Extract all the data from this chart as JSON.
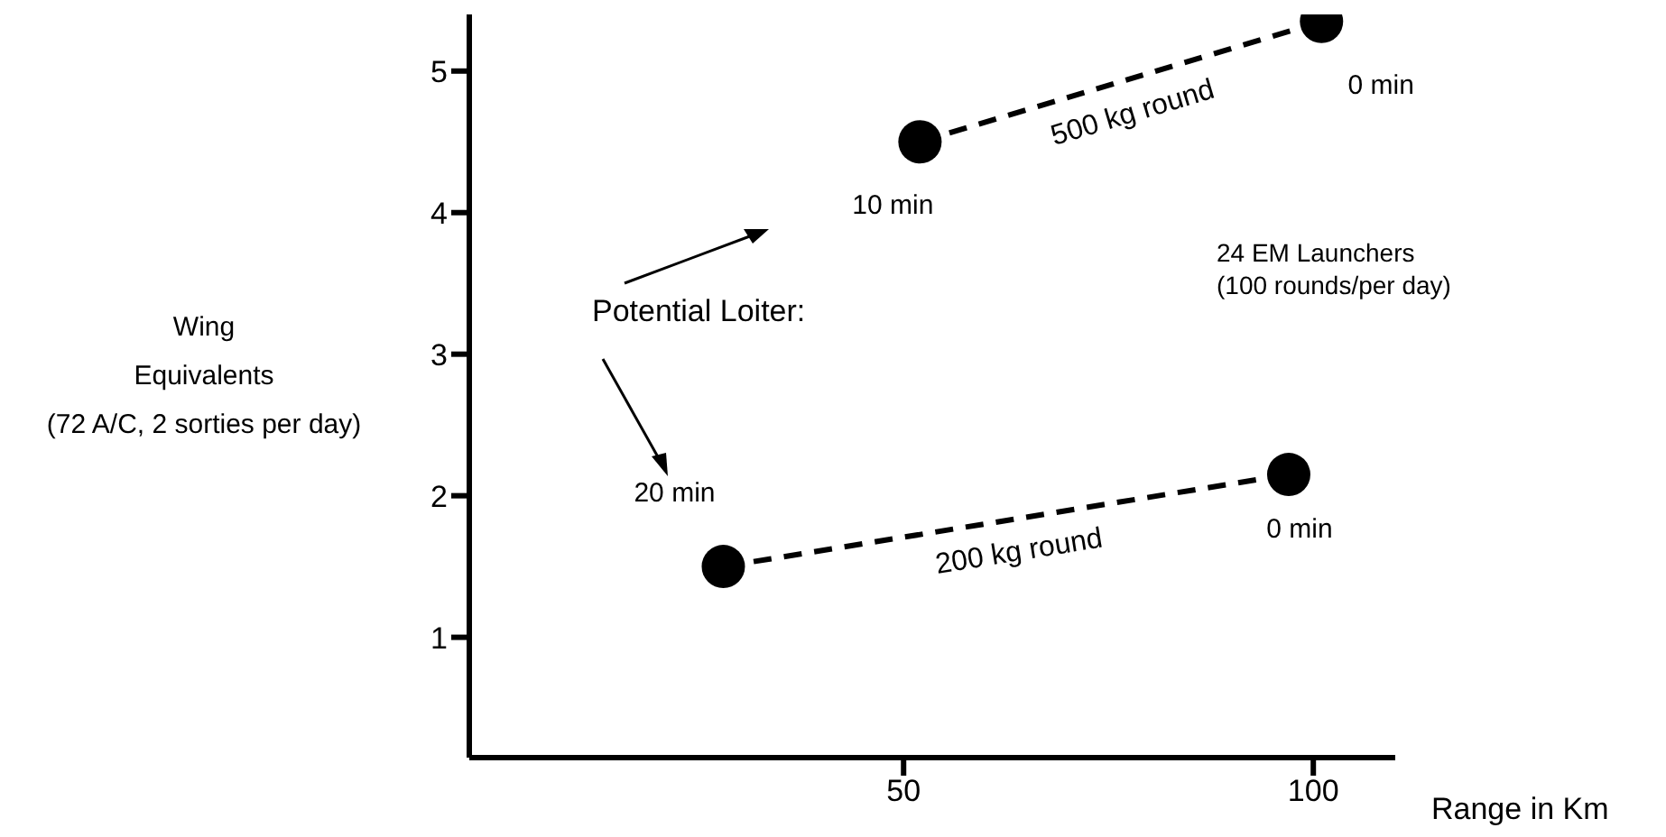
{
  "chart_data": {
    "type": "line",
    "xlabel": "Range in Km",
    "ylabel": "Wing\nEquivalents\n(72 A/C, 2 sorties per day)",
    "xlim": [
      -3,
      110
    ],
    "ylim": [
      0.15,
      5.4
    ],
    "xticks": [
      50,
      100
    ],
    "yticks": [
      1,
      2,
      3,
      4,
      5
    ],
    "marker": "circle",
    "line_style": "dashed",
    "series": [
      {
        "name": "500 kg round",
        "color": "#000000",
        "x": [
          52,
          101
        ],
        "values": [
          4.5,
          5.35
        ]
      },
      {
        "name": "200 kg round",
        "color": "#000000",
        "x": [
          28,
          97
        ],
        "values": [
          1.5,
          2.15
        ]
      }
    ],
    "annotations": [
      {
        "text": "10 min",
        "x": 52,
        "y": 4.5
      },
      {
        "text": "0 min",
        "x": 101,
        "y": 5.35
      },
      {
        "text": "20 min",
        "x": 28,
        "y": 1.5
      },
      {
        "text": "0 min",
        "x": 97,
        "y": 2.15
      },
      "Potential Loiter:",
      "24 EM Launchers\n(100 rounds/per day)"
    ]
  }
}
